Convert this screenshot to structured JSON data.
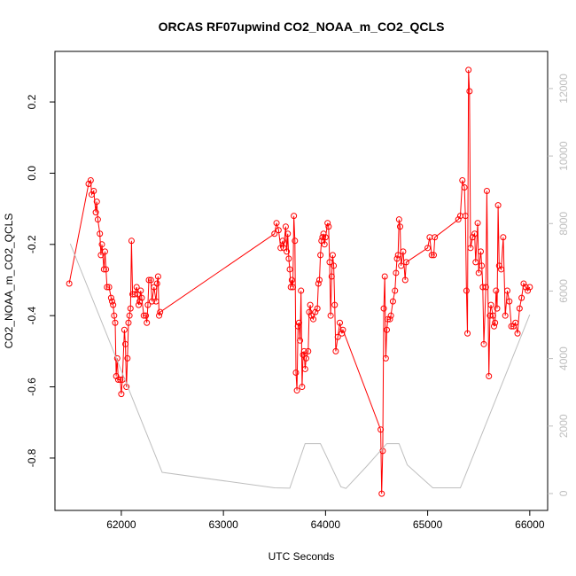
{
  "chart_data": {
    "type": "line",
    "title": "ORCAS RF07upwind CO2_NOAA_m_CO2_QCLS",
    "x_label": "UTC Seconds",
    "y_label": "CO2_NOAA_m_CO2_QCLS",
    "xlim": [
      61350,
      66175
    ],
    "xticks": [
      62000,
      63000,
      64000,
      65000,
      66000
    ],
    "ylim": [
      -0.947,
      0.342
    ],
    "yticks": [
      -0.8,
      -0.6,
      -0.4,
      -0.2,
      {
        "value": 0,
        "label": "0.0"
      },
      0.2
    ],
    "y2lim": [
      -500,
      13100
    ],
    "y2ticks": [
      0,
      2000,
      4000,
      6000,
      8000,
      10000,
      12000
    ],
    "y2_color": "#bebebe",
    "series": [
      {
        "color": "#ff0000",
        "marker": "circle",
        "x": [
          61490,
          61680,
          61700,
          61710,
          61730,
          61750,
          61760,
          61770,
          61790,
          61800,
          61810,
          61830,
          61840,
          61850,
          61860,
          61880,
          61900,
          61910,
          61920,
          61930,
          61940,
          61950,
          61960,
          61970,
          61990,
          62000,
          62010,
          62030,
          62040,
          62050,
          62060,
          62070,
          62080,
          62090,
          62100,
          62110,
          62130,
          62150,
          62160,
          62170,
          62180,
          62190,
          62200,
          62220,
          62240,
          62250,
          62260,
          62270,
          62290,
          62300,
          62320,
          62340,
          62350,
          62360,
          62370,
          62380,
          63500,
          63520,
          63540,
          63560,
          63580,
          63590,
          63610,
          63620,
          63630,
          63640,
          63650,
          63660,
          63670,
          63680,
          63690,
          63700,
          63710,
          63720,
          63730,
          63740,
          63750,
          63760,
          63770,
          63780,
          63790,
          63800,
          63810,
          63830,
          63840,
          63850,
          63860,
          63880,
          63900,
          63920,
          63930,
          63940,
          63950,
          63960,
          63970,
          63980,
          63990,
          64000,
          64020,
          64030,
          64040,
          64050,
          64060,
          64070,
          64080,
          64090,
          64100,
          64120,
          64140,
          64160,
          64170,
          64540,
          64550,
          64560,
          64570,
          64580,
          64590,
          64600,
          64610,
          64630,
          64640,
          64660,
          64680,
          64690,
          64700,
          64710,
          64720,
          64730,
          64740,
          64760,
          64780,
          64790,
          65000,
          65020,
          65040,
          65060,
          65070,
          65300,
          65320,
          65340,
          65360,
          65370,
          65380,
          65390,
          65400,
          65410,
          65420,
          65440,
          65460,
          65470,
          65490,
          65500,
          65520,
          65530,
          65540,
          65550,
          65570,
          65580,
          65600,
          65610,
          65620,
          65640,
          65650,
          65660,
          65670,
          65680,
          65690,
          65700,
          65720,
          65740,
          65760,
          65780,
          65800,
          65820,
          65840,
          65860,
          65880,
          65900,
          65920,
          65940,
          65960,
          65980,
          66000
        ],
        "values": [
          -0.31,
          -0.03,
          -0.02,
          -0.06,
          -0.05,
          -0.11,
          -0.08,
          -0.13,
          -0.17,
          -0.23,
          -0.2,
          -0.27,
          -0.22,
          -0.27,
          -0.32,
          -0.32,
          -0.35,
          -0.36,
          -0.37,
          -0.4,
          -0.42,
          -0.57,
          -0.52,
          -0.58,
          -0.58,
          -0.62,
          -0.58,
          -0.44,
          -0.48,
          -0.6,
          -0.52,
          -0.42,
          -0.4,
          -0.38,
          -0.19,
          -0.34,
          -0.34,
          -0.32,
          -0.34,
          -0.37,
          -0.36,
          -0.33,
          -0.35,
          -0.4,
          -0.4,
          -0.42,
          -0.37,
          -0.3,
          -0.3,
          -0.36,
          -0.32,
          -0.36,
          -0.31,
          -0.29,
          -0.4,
          -0.39,
          -0.17,
          -0.14,
          -0.16,
          -0.21,
          -0.19,
          -0.21,
          -0.15,
          -0.22,
          -0.17,
          -0.24,
          -0.27,
          -0.32,
          -0.3,
          -0.32,
          -0.12,
          -0.19,
          -0.56,
          -0.61,
          -0.43,
          -0.42,
          -0.47,
          -0.33,
          -0.6,
          -0.51,
          -0.5,
          -0.55,
          -0.52,
          -0.5,
          -0.39,
          -0.37,
          -0.4,
          -0.41,
          -0.39,
          -0.38,
          -0.31,
          -0.3,
          -0.23,
          -0.19,
          -0.18,
          -0.17,
          -0.2,
          -0.18,
          -0.14,
          -0.15,
          -0.25,
          -0.4,
          -0.29,
          -0.23,
          -0.26,
          -0.37,
          -0.5,
          -0.46,
          -0.42,
          -0.45,
          -0.44,
          -0.72,
          -0.9,
          -0.78,
          -0.38,
          -0.29,
          -0.52,
          -0.44,
          -0.41,
          -0.41,
          -0.4,
          -0.36,
          -0.33,
          -0.28,
          -0.24,
          -0.23,
          -0.13,
          -0.15,
          -0.26,
          -0.22,
          -0.3,
          -0.25,
          -0.21,
          -0.18,
          -0.23,
          -0.23,
          -0.18,
          -0.13,
          -0.12,
          -0.02,
          -0.04,
          -0.12,
          -0.33,
          -0.45,
          0.29,
          0.23,
          -0.21,
          -0.18,
          -0.17,
          -0.25,
          -0.14,
          -0.28,
          -0.22,
          -0.26,
          -0.32,
          -0.48,
          -0.32,
          -0.05,
          -0.57,
          -0.4,
          -0.37,
          -0.4,
          -0.43,
          -0.42,
          -0.33,
          -0.38,
          -0.09,
          -0.26,
          -0.27,
          -0.18,
          -0.4,
          -0.33,
          -0.36,
          -0.43,
          -0.43,
          -0.42,
          -0.45,
          -0.38,
          -0.35,
          -0.31,
          -0.32,
          -0.33,
          -0.32
        ]
      },
      {
        "color": "#bebebe",
        "axis": "y2",
        "x": [
          61500,
          62400,
          63500,
          63650,
          63800,
          63950,
          64150,
          64200,
          64400,
          64600,
          64720,
          64800,
          65050,
          65320,
          66000
        ],
        "values": [
          7400,
          630,
          170,
          160,
          1480,
          1480,
          200,
          150,
          800,
          1480,
          1480,
          850,
          170,
          170,
          5300
        ]
      }
    ]
  }
}
